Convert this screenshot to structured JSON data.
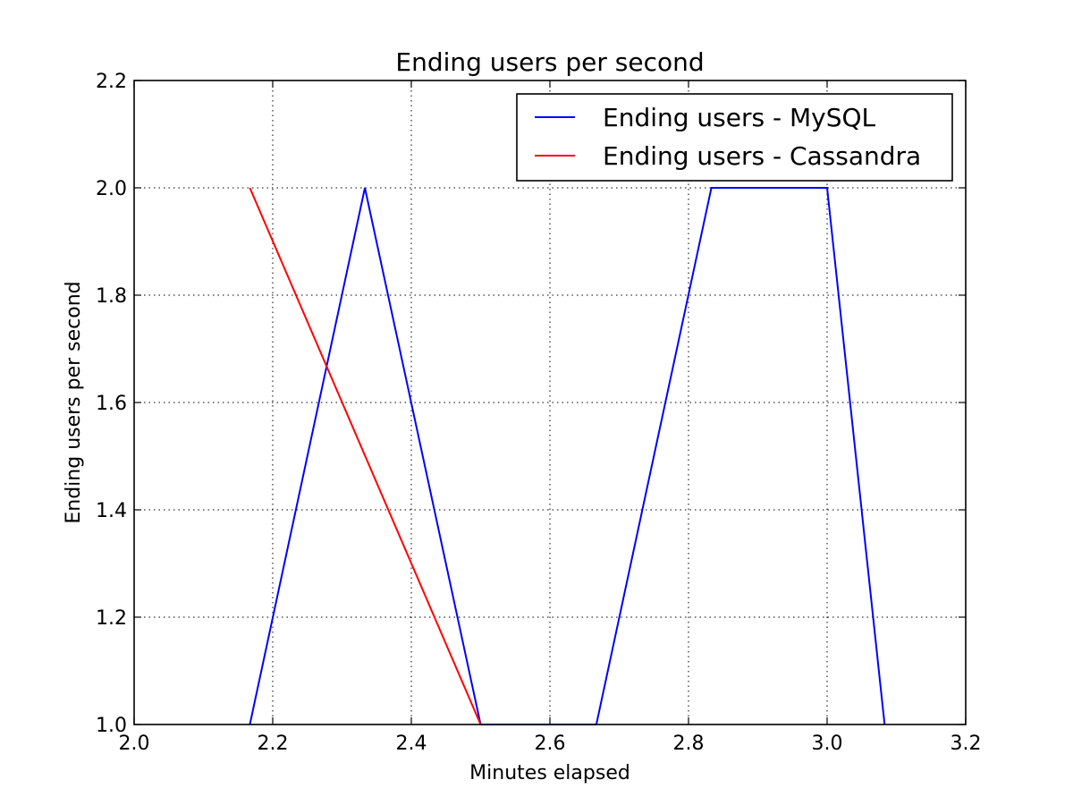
{
  "chart_data": {
    "type": "line",
    "title": "Ending users per second",
    "xlabel": "Minutes elapsed",
    "ylabel": "Ending users per second",
    "xlim": [
      2.0,
      3.2
    ],
    "ylim": [
      1.0,
      2.2
    ],
    "xticks": [
      2.0,
      2.2,
      2.4,
      2.6,
      2.8,
      3.0,
      3.2
    ],
    "yticks": [
      1.0,
      1.2,
      1.4,
      1.6,
      1.8,
      2.0,
      2.2
    ],
    "xtick_labels": [
      "2.0",
      "2.2",
      "2.4",
      "2.6",
      "2.8",
      "3.0",
      "3.2"
    ],
    "ytick_labels": [
      "1.0",
      "1.2",
      "1.4",
      "1.6",
      "1.8",
      "2.0",
      "2.2"
    ],
    "grid": true,
    "legend_position": "top-right",
    "series": [
      {
        "name": "Ending users - MySQL",
        "color": "#0000ff",
        "points": [
          [
            2.167,
            1.0
          ],
          [
            2.333,
            2.0
          ],
          [
            2.5,
            1.0
          ],
          [
            2.667,
            1.0
          ],
          [
            2.833,
            2.0
          ],
          [
            3.0,
            2.0
          ],
          [
            3.083,
            1.0
          ]
        ]
      },
      {
        "name": "Ending users - Cassandra",
        "color": "#ff0000",
        "points": [
          [
            2.167,
            2.0
          ],
          [
            2.5,
            1.0
          ]
        ]
      }
    ]
  }
}
